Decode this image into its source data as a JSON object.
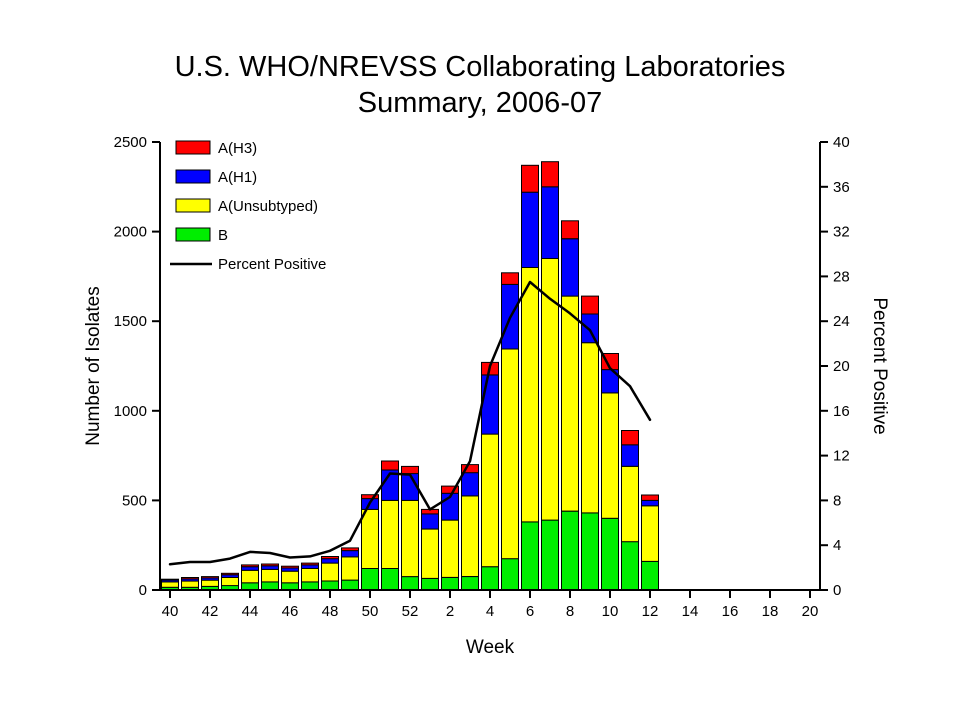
{
  "title": {
    "line1": "U.S. WHO/NREVSS Collaborating Laboratories",
    "line2": "Summary, 2006-07"
  },
  "chart_data": {
    "type": "bar",
    "stacked": true,
    "title": "U.S. WHO/NREVSS Collaborating Laboratories Summary, 2006-07",
    "x_axis": {
      "label": "Week",
      "n_slots": 33,
      "tick_labels": [
        "40",
        "42",
        "44",
        "46",
        "48",
        "50",
        "52",
        "2",
        "4",
        "6",
        "8",
        "10",
        "12",
        "14",
        "16",
        "18",
        "20"
      ]
    },
    "y_left": {
      "label": "Number of Isolates",
      "range": [
        0,
        2500
      ],
      "ticks": [
        0,
        500,
        1000,
        1500,
        2000,
        2500
      ]
    },
    "y_right": {
      "label": "Percent Positive",
      "range": [
        0,
        40
      ],
      "ticks": [
        0,
        4,
        8,
        12,
        16,
        20,
        24,
        28,
        32,
        36,
        40
      ]
    },
    "categories": [
      "40",
      "41",
      "42",
      "43",
      "44",
      "45",
      "46",
      "47",
      "48",
      "49",
      "50",
      "51",
      "52",
      "1",
      "2",
      "3",
      "4",
      "5",
      "6",
      "7",
      "8",
      "9",
      "10",
      "11",
      "12"
    ],
    "series": [
      {
        "name": "B",
        "color": "#00EE00",
        "values": [
          15,
          15,
          20,
          25,
          40,
          45,
          40,
          45,
          50,
          55,
          120,
          120,
          75,
          65,
          70,
          75,
          130,
          175,
          380,
          390,
          440,
          430,
          400,
          270,
          160
        ]
      },
      {
        "name": "A(Unsubtyped)",
        "color": "#FFFF00",
        "values": [
          30,
          35,
          35,
          45,
          70,
          70,
          65,
          75,
          100,
          130,
          330,
          380,
          425,
          275,
          320,
          450,
          740,
          1170,
          1420,
          1460,
          1200,
          950,
          700,
          420,
          310
        ]
      },
      {
        "name": "A(H1)",
        "color": "#0000FF",
        "values": [
          10,
          12,
          12,
          15,
          20,
          20,
          18,
          20,
          25,
          35,
          60,
          170,
          150,
          85,
          150,
          130,
          330,
          360,
          420,
          400,
          320,
          160,
          130,
          120,
          30
        ]
      },
      {
        "name": "A(H3)",
        "color": "#FF0000",
        "values": [
          5,
          8,
          8,
          8,
          10,
          10,
          10,
          10,
          12,
          15,
          22,
          50,
          40,
          25,
          40,
          45,
          70,
          65,
          150,
          140,
          100,
          100,
          90,
          80,
          30
        ]
      }
    ],
    "line": {
      "name": "Percent Positive",
      "color": "#000000",
      "values": [
        2.3,
        2.5,
        2.5,
        2.8,
        3.4,
        3.3,
        2.9,
        3.0,
        3.5,
        4.4,
        7.8,
        10.4,
        10.3,
        7.2,
        8.3,
        11.5,
        20.0,
        24.3,
        27.5,
        26.0,
        24.7,
        23.2,
        19.8,
        18.2,
        15.2
      ]
    },
    "legend": [
      {
        "label": "A(H3)",
        "color": "#FF0000",
        "type": "box"
      },
      {
        "label": "A(H1)",
        "color": "#0000FF",
        "type": "box"
      },
      {
        "label": "A(Unsubtyped)",
        "color": "#FFFF00",
        "type": "box"
      },
      {
        "label": "B",
        "color": "#00EE00",
        "type": "box"
      },
      {
        "label": "Percent Positive",
        "color": "#000000",
        "type": "line"
      }
    ],
    "legend_position": "top-left-inside",
    "grid": false
  }
}
